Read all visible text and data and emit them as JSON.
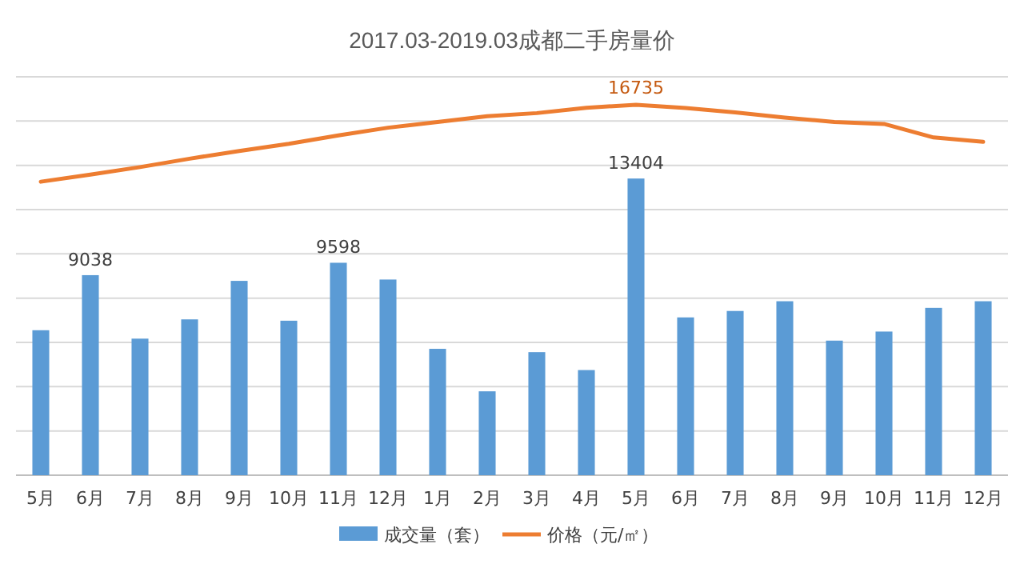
{
  "chart_data": {
    "type": "bar",
    "title": "2017.03-2019.03成都二手房量价",
    "categories": [
      "5月",
      "6月",
      "7月",
      "8月",
      "9月",
      "10月",
      "11月",
      "12月",
      "1月",
      "2月",
      "3月",
      "4月",
      "5月",
      "6月",
      "7月",
      "8月",
      "9月",
      "10月",
      "11月",
      "12月"
    ],
    "series": [
      {
        "name": "成交量（套）",
        "color": "#5b9bd5",
        "values": [
          6550,
          9038,
          6170,
          7040,
          8780,
          6980,
          9598,
          8840,
          5710,
          3790,
          5560,
          4750,
          13404,
          7130,
          7420,
          7860,
          6080,
          6490,
          7560,
          7860
        ],
        "value_labels": [
          null,
          "9038",
          null,
          null,
          null,
          null,
          "9598",
          null,
          null,
          null,
          null,
          null,
          "13404",
          null,
          null,
          null,
          null,
          null,
          null,
          null
        ]
      },
      {
        "name": "价格（元/㎡）",
        "type": "line",
        "color": "#ed7d31",
        "values": [
          13260,
          13580,
          13920,
          14300,
          14650,
          14970,
          15350,
          15700,
          15960,
          16220,
          16360,
          16600,
          16735,
          16590,
          16390,
          16160,
          15960,
          15870,
          15260,
          15060
        ],
        "value_labels": [
          null,
          null,
          null,
          null,
          null,
          null,
          null,
          null,
          null,
          null,
          null,
          null,
          "16735",
          null,
          null,
          null,
          null,
          null,
          null,
          null
        ]
      }
    ],
    "ylim": [
      0,
      18000
    ],
    "yticks": [
      {
        "value": 0,
        "label": null
      },
      {
        "value": 2000,
        "label": null
      },
      {
        "value": 4000,
        "label": null
      },
      {
        "value": 6000,
        "label": null
      },
      {
        "value": 8000,
        "label": null
      },
      {
        "value": 10000,
        "label": null
      },
      {
        "value": 12000,
        "label": null
      },
      {
        "value": 14000,
        "label": null
      },
      {
        "value": 16000,
        "label": null
      },
      {
        "value": 18000,
        "label": null
      }
    ],
    "grid": "y",
    "legend": "bottom",
    "tick_labels": "x",
    "marker": "none"
  }
}
